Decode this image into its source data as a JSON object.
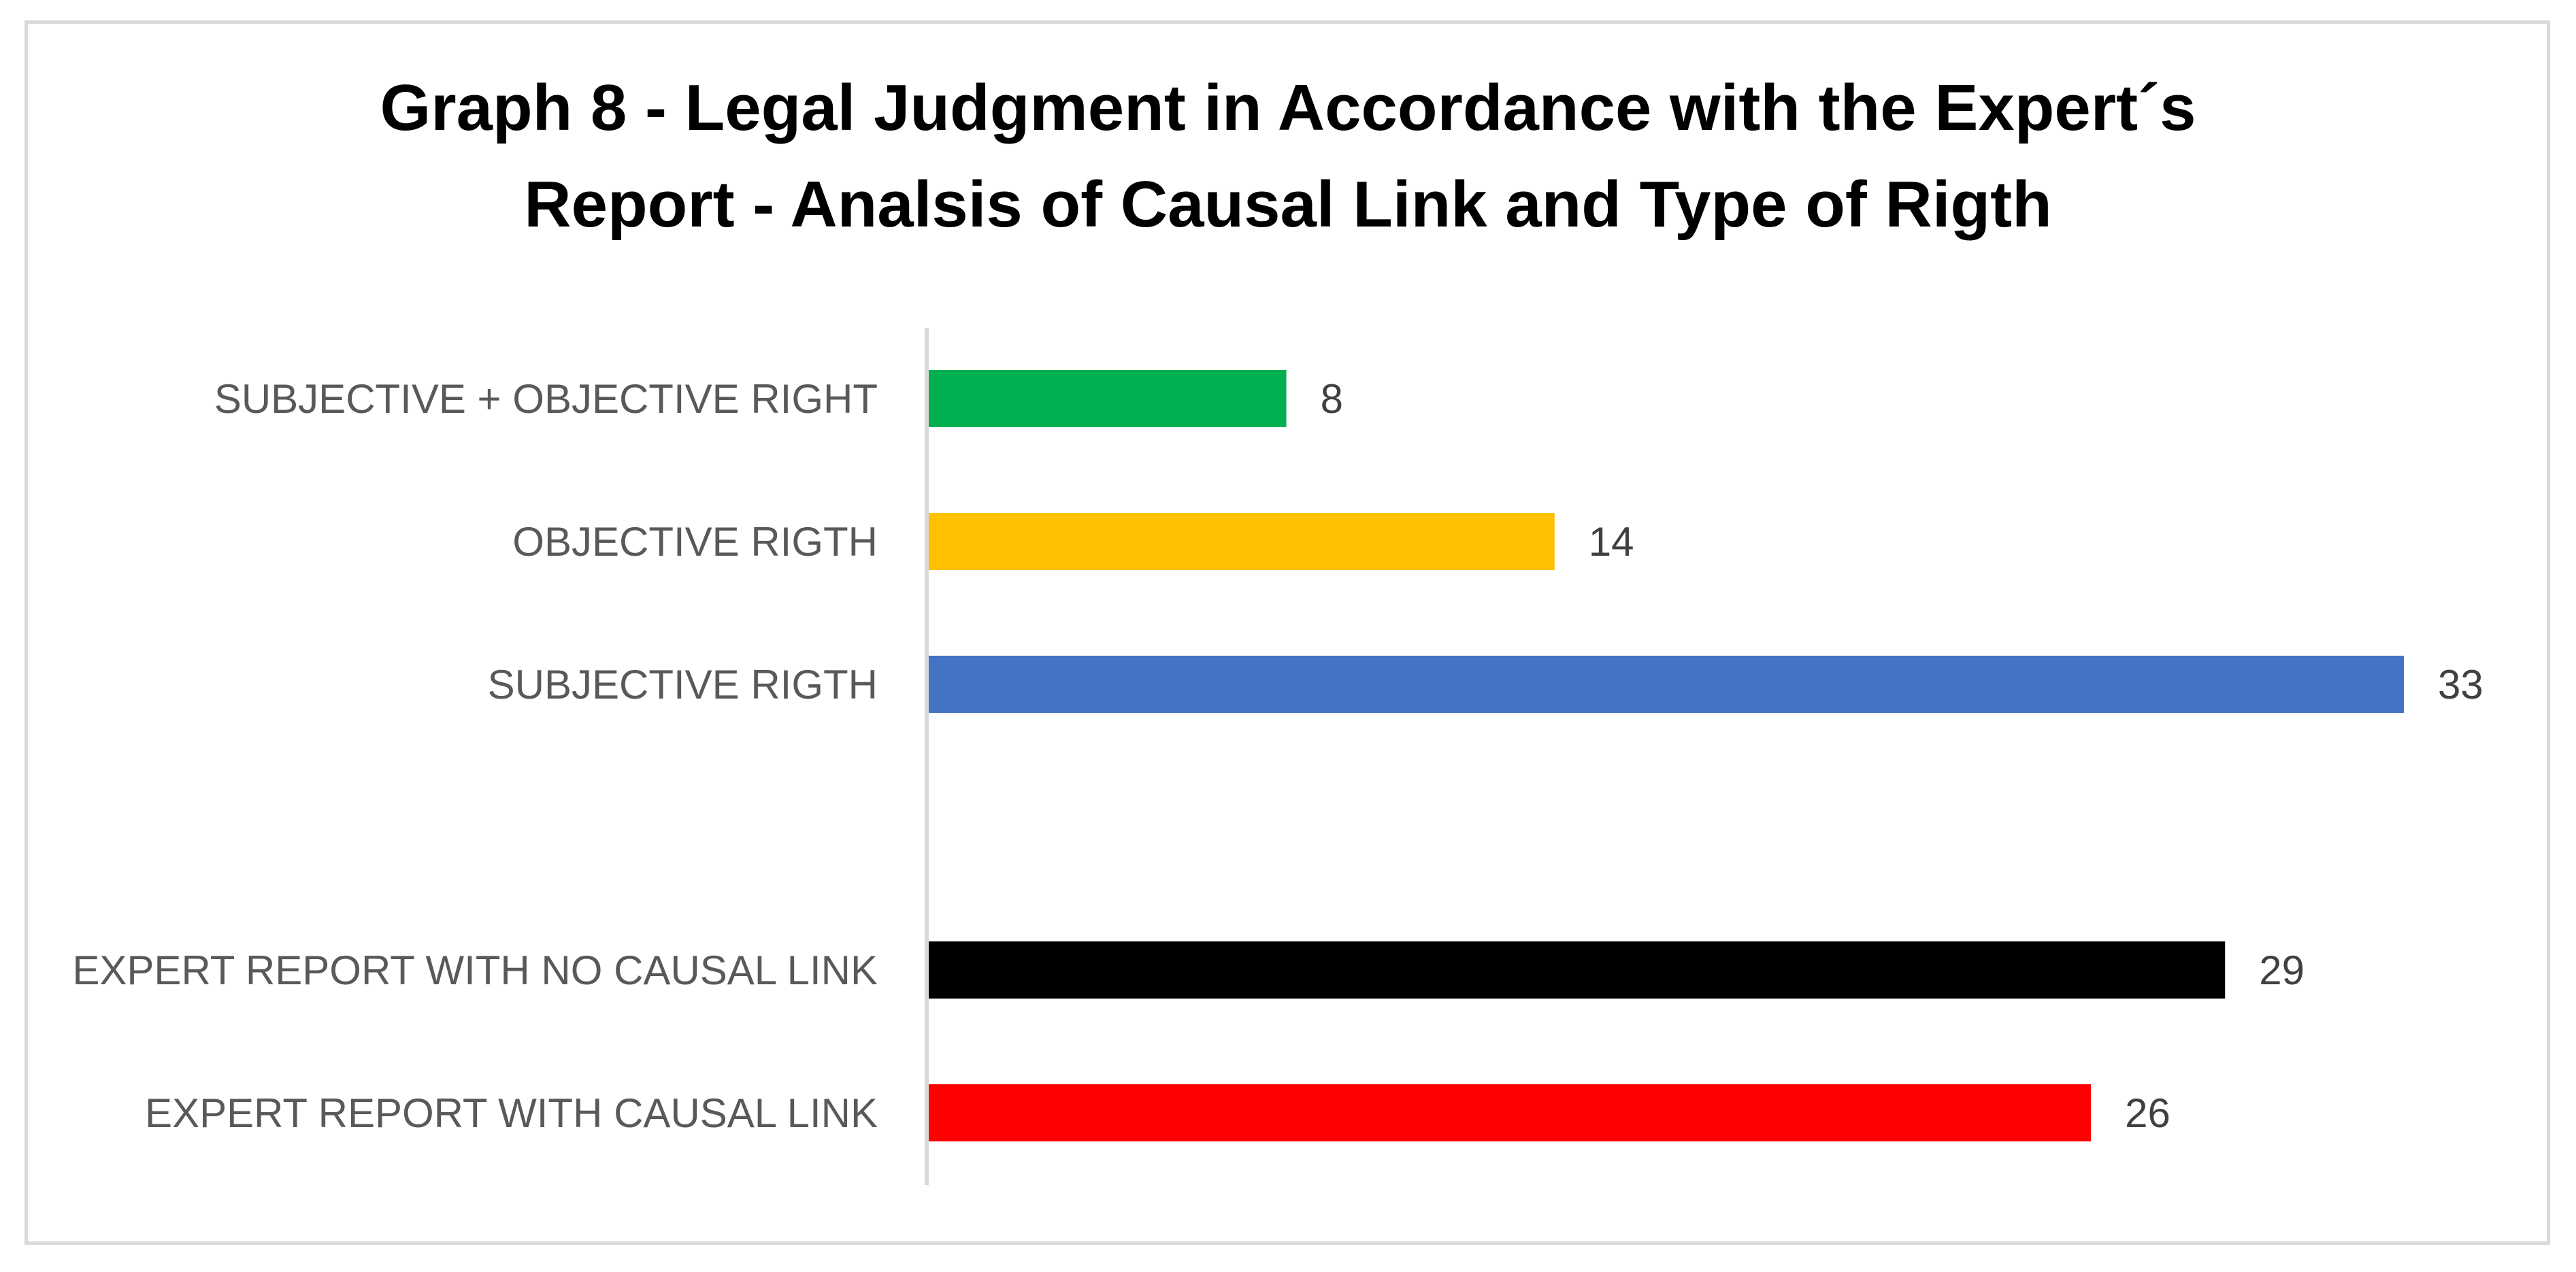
{
  "chart_data": {
    "type": "bar",
    "orientation": "horizontal",
    "title": "Graph 8 - Legal Judgment in Accordance with the Expert´s Report - Analsis of Causal Link and Type of Rigth",
    "title_lines": [
      "Graph 8 - Legal Judgment in Accordance with the Expert´s",
      "Report - Analsis of Causal Link and Type of Rigth"
    ],
    "xlabel": "",
    "ylabel": "",
    "xlim": [
      0,
      33
    ],
    "grid": false,
    "legend": "none",
    "gap_after_index": 2,
    "categories": [
      "SUBJECTIVE + OBJECTIVE RIGHT",
      "OBJECTIVE RIGTH",
      "SUBJECTIVE RIGTH",
      "EXPERT REPORT WITH NO CAUSAL LINK",
      "EXPERT REPORT WITH CAUSAL LINK"
    ],
    "values": [
      8,
      14,
      33,
      29,
      26
    ],
    "colors": [
      "#00b050",
      "#ffc000",
      "#4472c4",
      "#000000",
      "#ff0000"
    ]
  }
}
